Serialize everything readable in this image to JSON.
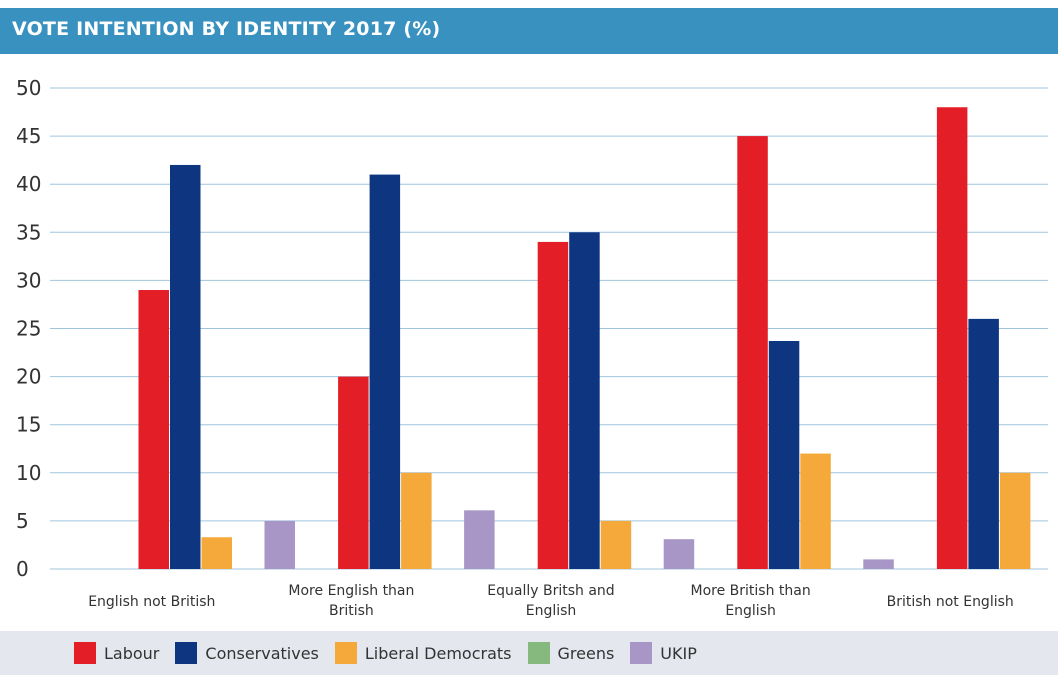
{
  "header": {
    "title": "VOTE INTENTION BY IDENTITY 2017 (%)"
  },
  "colors": {
    "header_bg": "#3891bf",
    "Labour": "#e41e26",
    "Conservatives": "#0e3680",
    "Liberal Democrats": "#f4a93a",
    "Greens": "#86b97d",
    "UKIP": "#a896c6"
  },
  "chart_data": {
    "type": "bar",
    "title": "VOTE INTENTION BY IDENTITY 2017 (%)",
    "categories": [
      [
        "English not British"
      ],
      [
        "More English than",
        "British"
      ],
      [
        "Equally Britsh and",
        "English"
      ],
      [
        "More British than",
        "English"
      ],
      [
        "British not English"
      ]
    ],
    "series": [
      {
        "name": "Labour",
        "color": "#e41e26",
        "values": [
          29,
          20,
          34,
          45,
          48
        ]
      },
      {
        "name": "Conservatives",
        "color": "#0e3680",
        "values": [
          42,
          41,
          35,
          23.7,
          26
        ]
      },
      {
        "name": "Liberal Democrats",
        "color": "#f4a93a",
        "values": [
          3.3,
          10,
          5,
          12,
          10
        ]
      },
      {
        "name": "Greens",
        "color": "#86b97d",
        "values": [
          0,
          0,
          0,
          0,
          0
        ]
      },
      {
        "name": "UKIP",
        "color": "#a896c6",
        "values": [
          5,
          6.1,
          3.1,
          1,
          1
        ]
      }
    ],
    "yticks": [
      "0",
      "5",
      "10",
      "15",
      "20",
      "25",
      "30",
      "35",
      "40",
      "45",
      "50"
    ],
    "ylim": [
      0,
      50
    ],
    "grid": true,
    "legend_position": "bottom"
  }
}
